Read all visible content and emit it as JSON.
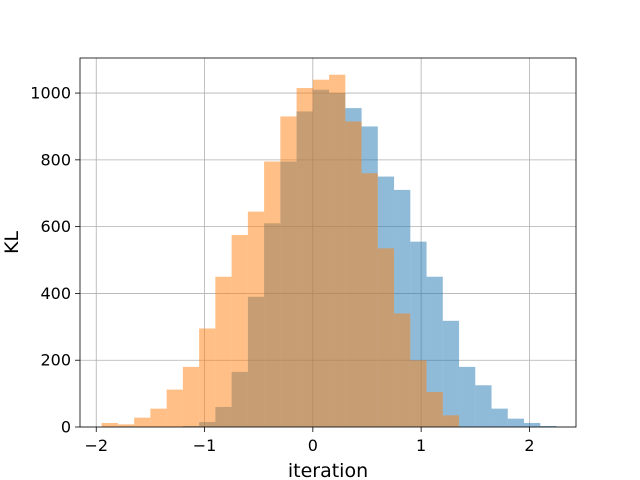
{
  "chart_data": {
    "type": "bar",
    "title": "",
    "xlabel": "iteration",
    "ylabel": "KL",
    "xlim": [
      -2.15,
      2.43
    ],
    "ylim": [
      0,
      1105
    ],
    "grid": true,
    "x_ticks": [
      -2,
      -1,
      0,
      1,
      2
    ],
    "y_ticks": [
      0,
      200,
      400,
      600,
      800,
      1000
    ],
    "series": [
      {
        "name": "",
        "color": "#1f77b4",
        "opacity": 0.5,
        "bin_edges": [
          -1.2,
          -1.05,
          -0.9,
          -0.75,
          -0.6,
          -0.45,
          -0.3,
          -0.15,
          0.0,
          0.15,
          0.3,
          0.45,
          0.6,
          0.75,
          0.9,
          1.05,
          1.2,
          1.35,
          1.5,
          1.65,
          1.8,
          1.95,
          2.1,
          2.25
        ],
        "counts": [
          3,
          15,
          60,
          165,
          390,
          610,
          795,
          945,
          1010,
          1000,
          955,
          900,
          750,
          710,
          555,
          450,
          318,
          180,
          125,
          55,
          25,
          12,
          3
        ]
      },
      {
        "name": "",
        "color": "#ff7f0e",
        "opacity": 0.5,
        "bin_edges": [
          -1.95,
          -1.8,
          -1.65,
          -1.5,
          -1.35,
          -1.2,
          -1.05,
          -0.9,
          -0.75,
          -0.6,
          -0.45,
          -0.3,
          -0.15,
          0.0,
          0.15,
          0.3,
          0.45,
          0.6,
          0.75,
          0.9,
          1.05,
          1.2,
          1.35
        ],
        "counts": [
          12,
          8,
          28,
          55,
          112,
          180,
          295,
          450,
          575,
          645,
          795,
          930,
          1015,
          1040,
          1055,
          915,
          760,
          535,
          340,
          200,
          105,
          35
        ]
      }
    ]
  }
}
